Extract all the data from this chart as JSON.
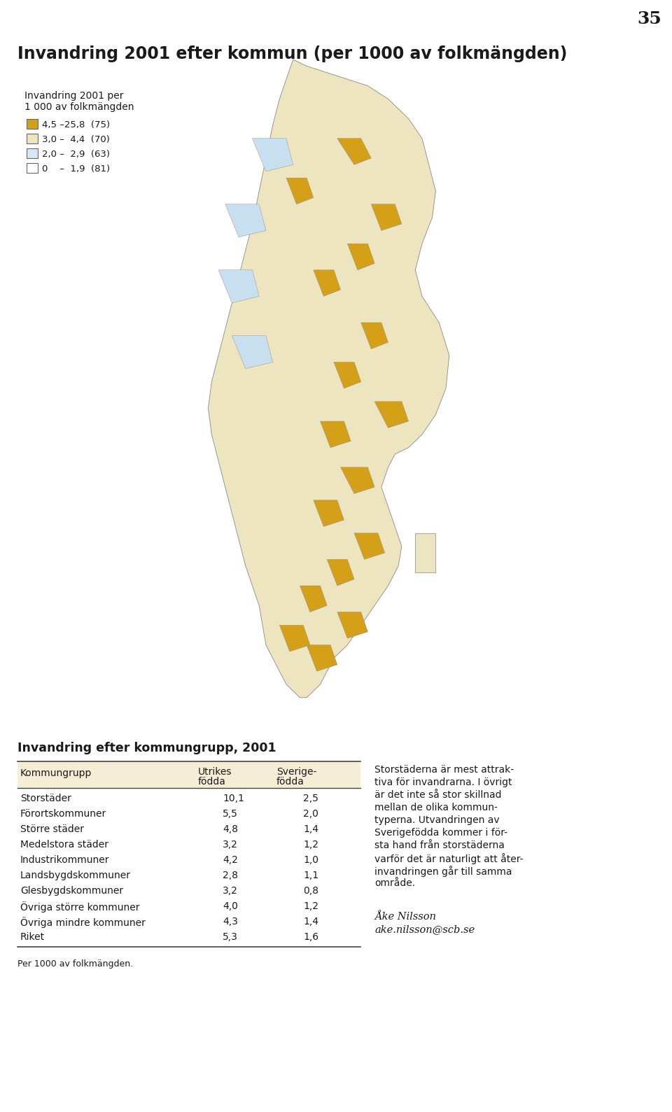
{
  "page_number": "35",
  "main_title": "Invandring 2001 efter kommun (per 1000 av folkmängden)",
  "legend_title_line1": "Invandring 2001 per",
  "legend_title_line2": "1 000 av folkmängden",
  "legend_items": [
    {
      "color": "#D4A017",
      "label": "4,5 –25,8  (75)"
    },
    {
      "color": "#EDE5C0",
      "label": "3,0 –  4,4  (70)"
    },
    {
      "color": "#D6E8F5",
      "label": "2,0 –  2,9  (63)"
    },
    {
      "color": "#FFFFFF",
      "label": "0    –  1,9  (81)"
    }
  ],
  "table_title": "Invandring efter kommungrupp, 2001",
  "table_header_col0": "Kommungrupp",
  "table_header_col1a": "Utrikes",
  "table_header_col1b": "födda",
  "table_header_col2a": "Sverige-",
  "table_header_col2b": "födda",
  "table_rows": [
    [
      "Storstäder",
      "10,1",
      "2,5"
    ],
    [
      "Förortskommuner",
      "5,5",
      "2,0"
    ],
    [
      "Större städer",
      "4,8",
      "1,4"
    ],
    [
      "Medelstora städer",
      "3,2",
      "1,2"
    ],
    [
      "Industrikommuner",
      "4,2",
      "1,0"
    ],
    [
      "Landsbygdskommuner",
      "2,8",
      "1,1"
    ],
    [
      "Glesbygdskommuner",
      "3,2",
      "0,8"
    ],
    [
      "Övriga större kommuner",
      "4,0",
      "1,2"
    ],
    [
      "Övriga mindre kommuner",
      "4,3",
      "1,4"
    ],
    [
      "Riket",
      "5,3",
      "1,6"
    ]
  ],
  "table_footnote": "Per 1000 av folkmängden.",
  "right_text": "Storstäderna är mest attraktiva för invandrarna. I övrigt är det inte så stor skillnad mellan de olika kommuntyperna. Utvandringen av Sverigefödda kommer i första hand från storstäderna varför det är naturligt att återinvandringen går till samma område.",
  "right_text_lines": [
    "Storstäderna är mest attrak-",
    "tiva för invandrarna. I övrigt",
    "är det inte så stor skillnad",
    "mellan de olika kommun-",
    "typerna. Utvandringen av",
    "Sverigefödda kommer i för-",
    "sta hand från storstäderna",
    "varför det är naturligt att åter-",
    "invandringen går till samma",
    "område."
  ],
  "signature_line1": "Åke Nilsson",
  "signature_line2": "ake.nilsson@scb.se",
  "background_color": "#FFFFFF",
  "text_color": "#1a1a1a",
  "header_bg_color": "#F5EDD5",
  "table_line_color": "#444444",
  "map_base_color": "#EDE5C0",
  "map_gold_color": "#D4A017",
  "map_blue_color": "#C8DFF0",
  "map_edge_color": "#888888"
}
